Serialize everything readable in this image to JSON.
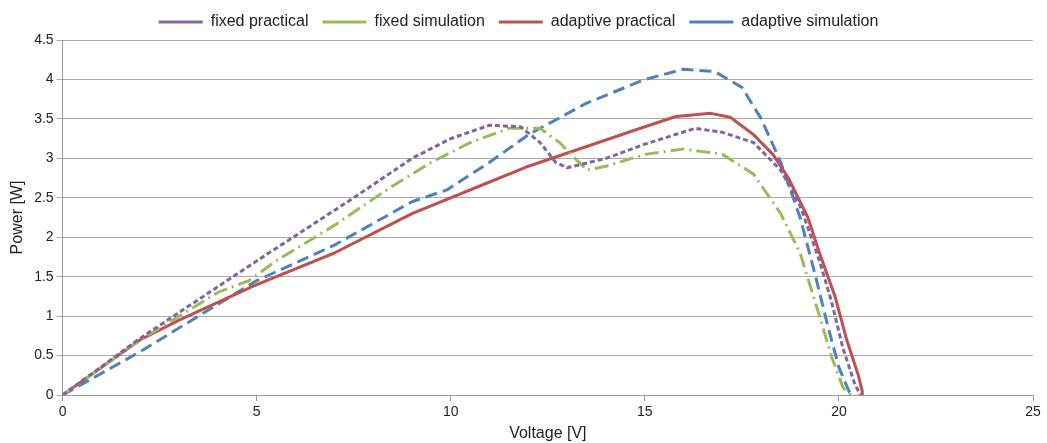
{
  "chart_data": {
    "type": "line",
    "xlabel": "Voltage [V]",
    "ylabel": "Power [W]",
    "xlim": [
      0,
      25
    ],
    "xticks": [
      0,
      5,
      10,
      15,
      20,
      25
    ],
    "ylim": [
      0,
      4.5
    ],
    "yticks": [
      0,
      0.5,
      1,
      1.5,
      2,
      2.5,
      3,
      3.5,
      4,
      4.5
    ],
    "grid": "y",
    "legend": "top",
    "marker": "none",
    "series": [
      {
        "name": "fixed practical",
        "color": "#8064a2",
        "line_style": "dotted",
        "x": [
          0,
          2,
          5,
          7.5,
          9,
          10,
          11,
          11.8,
          12.3,
          12.7,
          13,
          14,
          15,
          16.3,
          17,
          17.8,
          18.5,
          19,
          19.5,
          19.8,
          20.1,
          20.4,
          20.55
        ],
        "values": [
          0,
          0.72,
          1.7,
          2.5,
          3.0,
          3.25,
          3.42,
          3.4,
          3.2,
          2.95,
          2.88,
          3.0,
          3.18,
          3.38,
          3.33,
          3.2,
          2.85,
          2.4,
          1.7,
          1.2,
          0.6,
          0.15,
          0
        ]
      },
      {
        "name": "fixed simulation",
        "color": "#9bbb59",
        "line_style": "dashdot",
        "x": [
          0,
          2,
          4,
          4.8,
          5.5,
          7,
          8.5,
          9.5,
          10.5,
          11.5,
          12.3,
          12.8,
          13.5,
          14,
          15,
          16,
          17,
          17.8,
          18.5,
          19,
          19.5,
          19.8,
          20.1,
          20.3
        ],
        "values": [
          0,
          0.7,
          1.3,
          1.45,
          1.7,
          2.15,
          2.65,
          2.95,
          3.2,
          3.38,
          3.38,
          3.2,
          2.85,
          2.9,
          3.05,
          3.12,
          3.05,
          2.8,
          2.3,
          1.8,
          1.0,
          0.5,
          0.1,
          0
        ]
      },
      {
        "name": "adaptive practical",
        "color": "#c0504d",
        "line_style": "solid",
        "x": [
          0,
          2,
          3,
          5,
          7,
          9,
          11,
          12,
          13.5,
          15,
          15.8,
          16.7,
          17.2,
          17.8,
          18.3,
          18.7,
          19.2,
          19.5,
          19.9,
          20.2,
          20.5,
          20.6,
          20.6
        ],
        "values": [
          0,
          0.7,
          0.95,
          1.4,
          1.8,
          2.3,
          2.7,
          2.9,
          3.15,
          3.4,
          3.53,
          3.57,
          3.52,
          3.3,
          3.05,
          2.75,
          2.25,
          1.8,
          1.25,
          0.7,
          0.25,
          0.05,
          0
        ]
      },
      {
        "name": "adaptive simulation",
        "color": "#4f81bd",
        "line_style": "dashed",
        "x": [
          0,
          2,
          4,
          5,
          7,
          9,
          9.9,
          11,
          12,
          13.5,
          15,
          16,
          16.8,
          17.5,
          18,
          18.5,
          19,
          19.4,
          19.7,
          20,
          20.3
        ],
        "values": [
          0,
          0.55,
          1.15,
          1.45,
          1.9,
          2.45,
          2.6,
          2.95,
          3.3,
          3.7,
          4.0,
          4.13,
          4.1,
          3.9,
          3.5,
          2.95,
          2.25,
          1.5,
          0.9,
          0.35,
          0
        ]
      }
    ]
  }
}
